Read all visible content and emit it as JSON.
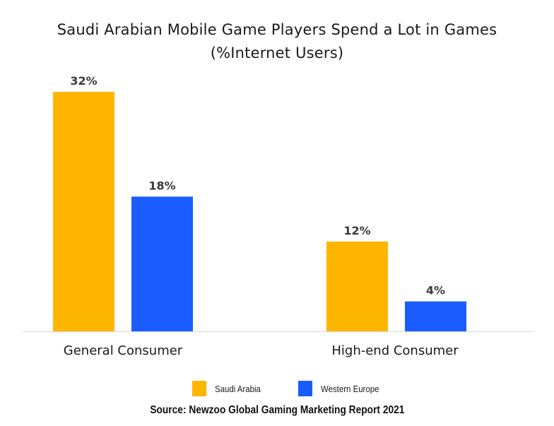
{
  "chart_data": {
    "type": "bar",
    "title": "Saudi Arabian Mobile Game Players Spend a Lot in Games",
    "subtitle": "(%Internet Users)",
    "categories": [
      "General Consumer",
      "High-end Consumer"
    ],
    "series": [
      {
        "name": "Saudi Arabia",
        "values": [
          32,
          12
        ],
        "labels": [
          "32%",
          "12%"
        ],
        "color": "#FFB600"
      },
      {
        "name": "Western Europe",
        "values": [
          18,
          4
        ],
        "labels": [
          "18%",
          "4%"
        ],
        "color": "#1A5CFF"
      }
    ],
    "ylim": [
      0,
      32
    ],
    "grid": false,
    "legend_position": "bottom",
    "source": "Source: Newzoo Global Gaming Marketing Report 2021"
  }
}
